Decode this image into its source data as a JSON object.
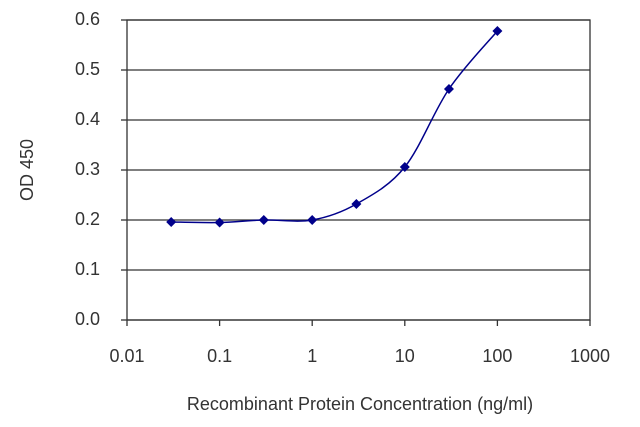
{
  "chart_data": {
    "type": "line",
    "x_label": "Recombinant Protein Concentration (ng/ml)",
    "y_label": "OD 450",
    "x": [
      0.03,
      0.1,
      0.3,
      1,
      3,
      10,
      30,
      100
    ],
    "series": [
      {
        "color": "#00008b",
        "values": [
          0.196,
          0.195,
          0.2,
          0.2,
          0.232,
          0.306,
          0.462,
          0.578
        ]
      }
    ],
    "xlim": [
      0.01,
      1000
    ],
    "xticks": [
      0.01,
      0.1,
      1,
      10,
      100,
      1000
    ],
    "xscale": "log",
    "ylim": [
      0,
      0.6
    ],
    "yticks": [
      {
        "value": 0,
        "label": "0.0"
      },
      0.1,
      0.2,
      0.3,
      0.4,
      0.5,
      0.6
    ],
    "grid": true
  }
}
